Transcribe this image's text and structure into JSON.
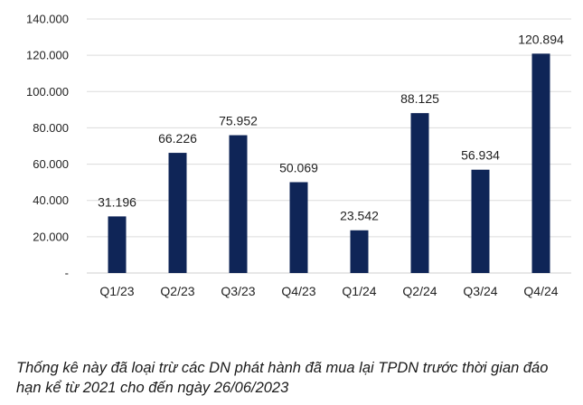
{
  "chart_data": {
    "type": "bar",
    "categories": [
      "Q1/23",
      "Q2/23",
      "Q3/23",
      "Q4/23",
      "Q1/24",
      "Q2/24",
      "Q3/24",
      "Q4/24"
    ],
    "values": [
      31196,
      66226,
      75952,
      50069,
      23542,
      88125,
      56934,
      120894
    ],
    "value_labels": [
      "31.196",
      "66.226",
      "75.952",
      "50.069",
      "23.542",
      "88.125",
      "56.934",
      "120.894"
    ],
    "ylim": [
      0,
      140000
    ],
    "yticks": [
      0,
      20000,
      40000,
      60000,
      80000,
      100000,
      120000,
      140000
    ],
    "ytick_labels": [
      "-",
      "20.000",
      "40.000",
      "60.000",
      "80.000",
      "100.000",
      "120.000",
      "140.000"
    ],
    "grid": true,
    "bar_color": "#0f2557",
    "title": "",
    "xlabel": "",
    "ylabel": ""
  },
  "caption": "Thống kê này đã loại trừ các DN phát hành đã mua lại TPDN trước thời gian đáo hạn kể từ 2021 cho đến ngày 26/06/2023"
}
